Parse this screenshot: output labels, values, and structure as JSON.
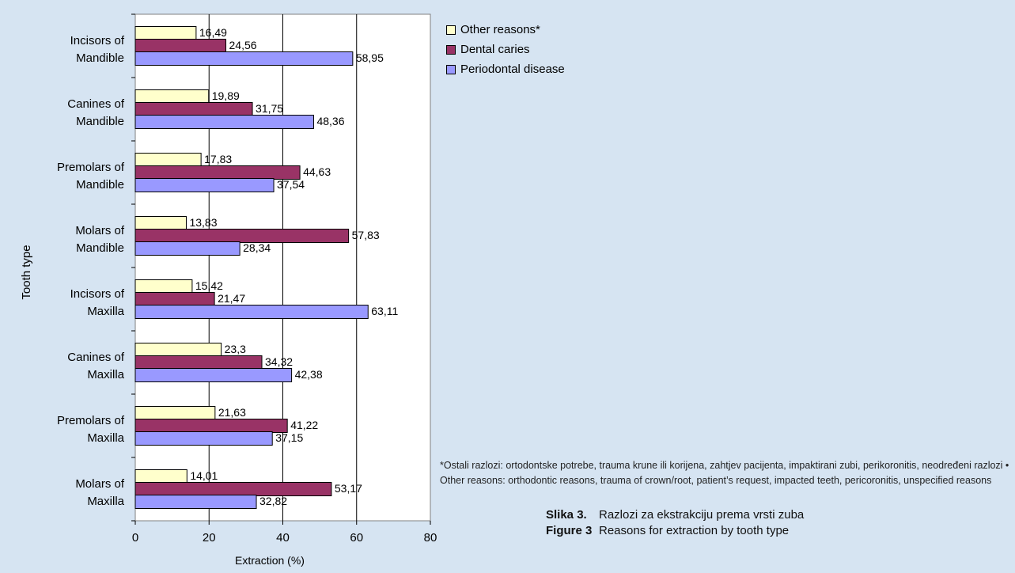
{
  "chart_data": {
    "type": "bar",
    "orientation": "horizontal",
    "categories": [
      "Incisors of Mandible",
      "Canines of Mandible",
      "Premolars of Mandible",
      "Molars of Mandible",
      "Incisors of Maxilla",
      "Canines of Maxilla",
      "Premolars of Maxilla",
      "Molars of Maxilla"
    ],
    "category_lines": [
      [
        "Incisors of",
        "Mandible"
      ],
      [
        "Canines of",
        "Mandible"
      ],
      [
        "Premolars of",
        "Mandible"
      ],
      [
        "Molars of",
        "Mandible"
      ],
      [
        "Incisors of",
        "Maxilla"
      ],
      [
        "Canines of",
        "Maxilla"
      ],
      [
        "Premolars of",
        "Maxilla"
      ],
      [
        "Molars of",
        "Maxilla"
      ]
    ],
    "series": [
      {
        "name": "Other reasons*",
        "color": "#ffffcc",
        "values": [
          16.49,
          19.89,
          17.83,
          13.83,
          15.42,
          23.3,
          21.63,
          14.01
        ],
        "labels": [
          "16,49",
          "19,89",
          "17,83",
          "13,83",
          "15,42",
          "23,3",
          "21,63",
          "14,01"
        ]
      },
      {
        "name": "Dental caries",
        "color": "#993366",
        "values": [
          24.56,
          31.75,
          44.63,
          57.83,
          21.47,
          34.32,
          41.22,
          53.17
        ],
        "labels": [
          "24,56",
          "31,75",
          "44,63",
          "57,83",
          "21,47",
          "34,32",
          "41,22",
          "53,17"
        ]
      },
      {
        "name": "Periodontal disease",
        "color": "#9999ff",
        "values": [
          58.95,
          48.36,
          37.54,
          28.34,
          63.11,
          42.38,
          37.15,
          32.82
        ],
        "labels": [
          "58,95",
          "48,36",
          "37,54",
          "28,34",
          "63,11",
          "42,38",
          "37,15",
          "32,82"
        ]
      }
    ],
    "xlabel": "Extraction (%)",
    "ylabel": "Tooth type",
    "xlim": [
      0,
      80
    ],
    "xticks": [
      0,
      20,
      40,
      60,
      80
    ],
    "grid": true,
    "legend_position": "top-right"
  },
  "footnote": "*Ostali razlozi: ortodontske potrebe, trauma krune ili korijena, zahtjev pacijenta, impaktirani zubi, perikoronitis, neodređeni razlozi • Other reasons: orthodontic reasons, trauma of crown/root, patient’s request, impacted teeth, pericoronitis, unspecified reasons",
  "caption": {
    "hr_label": "Slika 3.",
    "hr_text": "Razlozi za ekstrakciju prema vrsti zuba",
    "en_label": "Figure 3",
    "en_text": "Reasons for extraction by tooth type"
  }
}
